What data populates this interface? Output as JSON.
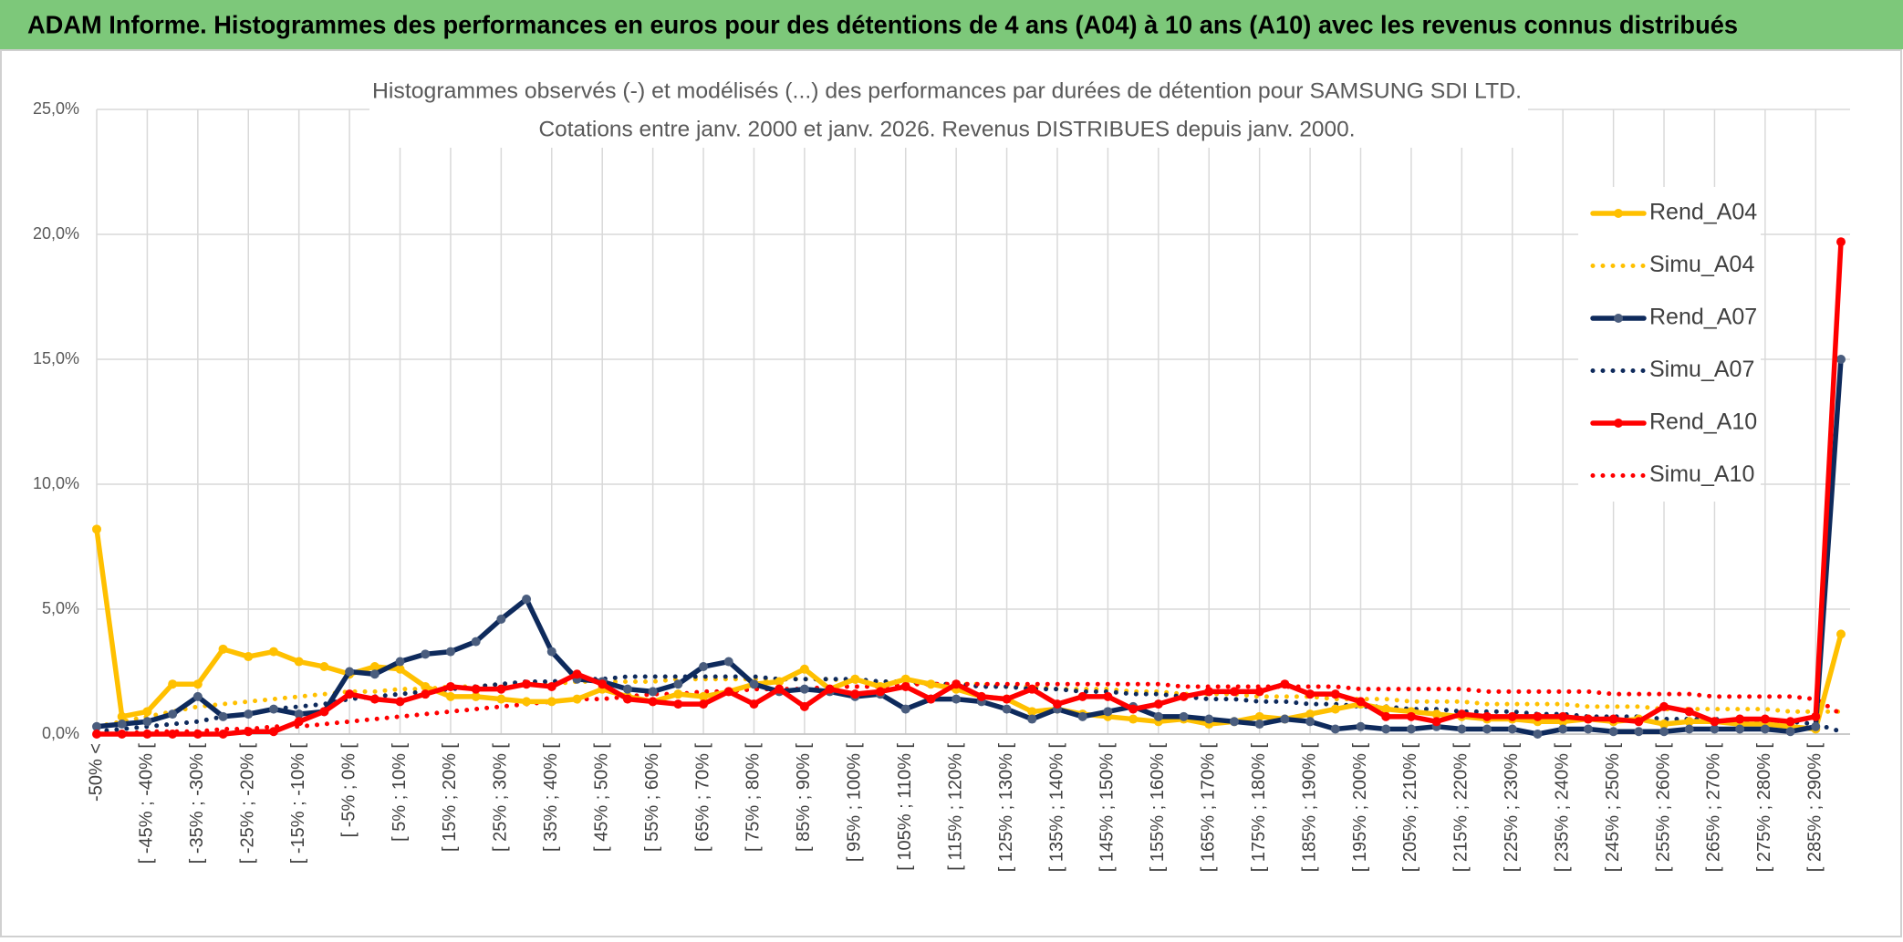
{
  "header": {
    "title": "ADAM Informe. Histogrammes des performances en euros pour des détentions de 4 ans (A04) à 10 ans (A10) avec les revenus connus distribués"
  },
  "chart_data": {
    "type": "line",
    "title": "Histogrammes observés (-) et modélisés (...) des performances par durées de détention pour SAMSUNG SDI LTD.",
    "subtitle": "Cotations entre janv. 2000 et janv. 2026. Revenus DISTRIBUES depuis janv. 2000.",
    "categories": [
      "-50% <",
      null,
      "[ -45% ; -40% [",
      null,
      "[ -35% ; -30% [",
      null,
      "[ -25% ; -20% [",
      null,
      "[ -15% ; -10% [",
      null,
      "[ -5% ; 0% [",
      null,
      "[ 5% ; 10% [",
      null,
      "[ 15% ; 20% [",
      null,
      "[ 25% ; 30% [",
      null,
      "[ 35% ; 40% [",
      null,
      "[ 45% ; 50% [",
      null,
      "[ 55% ; 60% [",
      null,
      "[ 65% ; 70% [",
      null,
      "[ 75% ; 80% [",
      null,
      "[ 85% ; 90% [",
      null,
      "[ 95% ; 100% [",
      null,
      "[ 105% ; 110% [",
      null,
      "[ 115% ; 120% [",
      null,
      "[ 125% ; 130% [",
      null,
      "[ 135% ; 140% [",
      null,
      "[ 145% ; 150% [",
      null,
      "[ 155% ; 160% [",
      null,
      "[ 165% ; 170% [",
      null,
      "[ 175% ; 180% [",
      null,
      "[ 185% ; 190% [",
      null,
      "[ 195% ; 200% [",
      null,
      "[ 205% ; 210% [",
      null,
      "[ 215% ; 220% [",
      null,
      "[ 225% ; 230% [",
      null,
      "[ 235% ; 240% [",
      null,
      "[ 245% ; 250% [",
      null,
      "[ 255% ; 260% [",
      null,
      "[ 265% ; 270% [",
      null,
      "[ 275% ; 280% [",
      null,
      "[ 285% ; 290% [",
      null
    ],
    "series": [
      {
        "name": "Rend_A04",
        "color": "#ffc000",
        "style": "solid",
        "marker": true,
        "values": [
          8.2,
          0.7,
          0.9,
          2.0,
          2.0,
          3.4,
          3.1,
          3.3,
          2.9,
          2.7,
          2.4,
          2.7,
          2.6,
          1.9,
          1.5,
          1.5,
          1.4,
          1.3,
          1.3,
          1.4,
          1.8,
          1.5,
          1.3,
          1.6,
          1.5,
          1.7,
          2.0,
          2.1,
          2.6,
          1.8,
          2.2,
          1.9,
          2.2,
          2.0,
          1.8,
          1.5,
          1.4,
          0.9,
          1.0,
          0.8,
          0.7,
          0.6,
          0.5,
          0.6,
          0.4,
          0.5,
          0.7,
          0.6,
          0.8,
          1.0,
          1.2,
          1.0,
          0.9,
          0.8,
          0.7,
          0.6,
          0.6,
          0.5,
          0.5,
          0.6,
          0.5,
          0.6,
          0.4,
          0.5,
          0.5,
          0.4,
          0.4,
          0.3,
          0.2,
          4.0
        ]
      },
      {
        "name": "Simu_A04",
        "color": "#ffc000",
        "style": "dotted",
        "marker": false,
        "values": [
          0.3,
          0.5,
          0.7,
          0.9,
          1.1,
          1.2,
          1.3,
          1.4,
          1.5,
          1.6,
          1.7,
          1.7,
          1.8,
          1.8,
          1.9,
          1.9,
          2.0,
          2.0,
          2.0,
          2.1,
          2.1,
          2.1,
          2.1,
          2.2,
          2.2,
          2.2,
          2.2,
          2.2,
          2.2,
          2.2,
          2.1,
          2.1,
          2.1,
          2.0,
          2.0,
          2.0,
          1.9,
          1.9,
          1.8,
          1.8,
          1.8,
          1.7,
          1.7,
          1.6,
          1.6,
          1.6,
          1.5,
          1.5,
          1.5,
          1.4,
          1.4,
          1.4,
          1.3,
          1.3,
          1.3,
          1.2,
          1.2,
          1.2,
          1.2,
          1.1,
          1.1,
          1.1,
          1.0,
          1.0,
          1.0,
          1.0,
          1.0,
          0.9,
          0.9,
          0.9
        ]
      },
      {
        "name": "Rend_A07",
        "color": "#0e2a5c",
        "marker_color": "#4a5d7e",
        "style": "solid",
        "marker": true,
        "values": [
          0.3,
          0.4,
          0.5,
          0.8,
          1.5,
          0.7,
          0.8,
          1.0,
          0.8,
          0.9,
          2.5,
          2.4,
          2.9,
          3.2,
          3.3,
          3.7,
          4.6,
          5.4,
          3.3,
          2.2,
          2.1,
          1.8,
          1.7,
          2.0,
          2.7,
          2.9,
          2.0,
          1.7,
          1.8,
          1.7,
          1.5,
          1.6,
          1.0,
          1.4,
          1.4,
          1.3,
          1.0,
          0.6,
          1.0,
          0.7,
          0.9,
          1.1,
          0.7,
          0.7,
          0.6,
          0.5,
          0.4,
          0.6,
          0.5,
          0.2,
          0.3,
          0.2,
          0.2,
          0.3,
          0.2,
          0.2,
          0.2,
          0.0,
          0.2,
          0.2,
          0.1,
          0.1,
          0.1,
          0.2,
          0.2,
          0.2,
          0.2,
          0.1,
          0.3,
          15.0
        ]
      },
      {
        "name": "Simu_A07",
        "color": "#0e2a5c",
        "style": "dotted",
        "marker": false,
        "values": [
          0.1,
          0.2,
          0.3,
          0.4,
          0.5,
          0.7,
          0.8,
          1.0,
          1.1,
          1.2,
          1.4,
          1.5,
          1.6,
          1.7,
          1.8,
          1.9,
          2.0,
          2.1,
          2.1,
          2.2,
          2.2,
          2.3,
          2.3,
          2.3,
          2.3,
          2.3,
          2.3,
          2.2,
          2.2,
          2.2,
          2.2,
          2.1,
          2.1,
          2.0,
          2.0,
          1.9,
          1.9,
          1.8,
          1.8,
          1.7,
          1.7,
          1.6,
          1.6,
          1.5,
          1.4,
          1.4,
          1.3,
          1.3,
          1.2,
          1.2,
          1.1,
          1.1,
          1.0,
          1.0,
          0.9,
          0.9,
          0.9,
          0.8,
          0.8,
          0.7,
          0.7,
          0.7,
          0.6,
          0.6,
          0.6,
          0.5,
          0.5,
          0.5,
          0.4,
          0.1
        ]
      },
      {
        "name": "Rend_A10",
        "color": "#ff0000",
        "style": "solid",
        "marker": true,
        "values": [
          0.0,
          0.0,
          0.0,
          0.0,
          0.0,
          0.0,
          0.1,
          0.1,
          0.5,
          0.9,
          1.6,
          1.4,
          1.3,
          1.6,
          1.9,
          1.8,
          1.8,
          2.0,
          1.9,
          2.4,
          2.0,
          1.4,
          1.3,
          1.2,
          1.2,
          1.7,
          1.2,
          1.8,
          1.1,
          1.8,
          1.6,
          1.7,
          1.9,
          1.4,
          2.0,
          1.5,
          1.4,
          1.8,
          1.2,
          1.5,
          1.5,
          1.0,
          1.2,
          1.5,
          1.7,
          1.7,
          1.7,
          2.0,
          1.6,
          1.6,
          1.3,
          0.7,
          0.7,
          0.5,
          0.8,
          0.7,
          0.7,
          0.7,
          0.7,
          0.6,
          0.6,
          0.5,
          1.1,
          0.9,
          0.5,
          0.6,
          0.6,
          0.5,
          0.7,
          19.7
        ]
      },
      {
        "name": "Simu_A10",
        "color": "#ff0000",
        "style": "dotted",
        "marker": false,
        "values": [
          0.0,
          0.0,
          0.1,
          0.1,
          0.1,
          0.2,
          0.2,
          0.3,
          0.3,
          0.4,
          0.5,
          0.6,
          0.7,
          0.8,
          0.9,
          1.0,
          1.1,
          1.2,
          1.3,
          1.4,
          1.4,
          1.5,
          1.6,
          1.6,
          1.7,
          1.7,
          1.8,
          1.8,
          1.8,
          1.9,
          1.9,
          1.9,
          2.0,
          2.0,
          2.0,
          2.0,
          2.0,
          2.0,
          2.0,
          2.0,
          2.0,
          2.0,
          2.0,
          1.9,
          1.9,
          1.9,
          1.9,
          1.9,
          1.9,
          1.9,
          1.8,
          1.8,
          1.8,
          1.8,
          1.8,
          1.7,
          1.7,
          1.7,
          1.7,
          1.7,
          1.6,
          1.6,
          1.6,
          1.6,
          1.5,
          1.5,
          1.5,
          1.5,
          1.4,
          0.8
        ]
      }
    ],
    "ylim": [
      0,
      25
    ],
    "yticks": [
      {
        "value": 0,
        "label": "0,0%"
      },
      {
        "value": 5,
        "label": "5,0%"
      },
      {
        "value": 10,
        "label": "10,0%"
      },
      {
        "value": 15,
        "label": "15,0%"
      },
      {
        "value": 20,
        "label": "20,0%"
      },
      {
        "value": 25,
        "label": "25,0%"
      }
    ],
    "grid": true,
    "legend": "right"
  }
}
